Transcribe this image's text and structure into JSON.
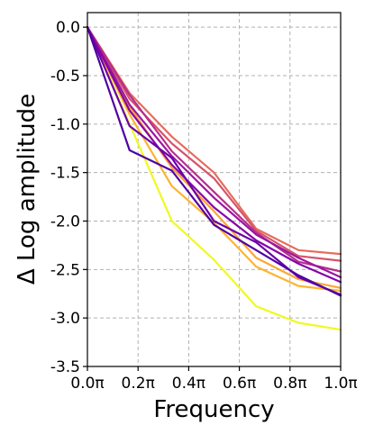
{
  "chart_data": {
    "type": "line",
    "title": "",
    "xlabel": "Frequency",
    "ylabel": "Δ Log amplitude",
    "xlim": [
      0,
      1
    ],
    "ylim": [
      -3.5,
      0.15
    ],
    "grid": true,
    "x_ticks": [
      {
        "value": 0.0,
        "label": "0.0π"
      },
      {
        "value": 0.2,
        "label": "0.2π"
      },
      {
        "value": 0.4,
        "label": "0.4π"
      },
      {
        "value": 0.6,
        "label": "0.6π"
      },
      {
        "value": 0.8,
        "label": "0.8π"
      },
      {
        "value": 1.0,
        "label": "1.0π"
      }
    ],
    "y_ticks": [
      {
        "value": 0.0,
        "label": "0.0"
      },
      {
        "value": -0.5,
        "label": "-0.5"
      },
      {
        "value": -1.0,
        "label": "-1.0"
      },
      {
        "value": -1.5,
        "label": "-1.5"
      },
      {
        "value": -2.0,
        "label": "-2.0"
      },
      {
        "value": -2.5,
        "label": "-2.5"
      },
      {
        "value": -3.0,
        "label": "-3.0"
      },
      {
        "value": -3.5,
        "label": "-3.5"
      }
    ],
    "x": [
      0,
      0.1667,
      0.3333,
      0.5,
      0.6667,
      0.8333,
      1.0
    ],
    "series": [
      {
        "color": "#f0f921",
        "values": [
          0,
          -1.0,
          -2.0,
          -2.4,
          -2.88,
          -3.05,
          -3.12
        ]
      },
      {
        "color": "#fdb42f",
        "values": [
          0,
          -0.9,
          -1.64,
          -2.02,
          -2.47,
          -2.67,
          -2.72
        ]
      },
      {
        "color": "#fca636",
        "values": [
          0,
          -0.82,
          -1.45,
          -1.9,
          -2.38,
          -2.6,
          -2.69
        ]
      },
      {
        "color": "#e66c5c",
        "values": [
          0,
          -0.68,
          -1.13,
          -1.5,
          -2.08,
          -2.3,
          -2.34
        ]
      },
      {
        "color": "#d5546e",
        "values": [
          0,
          -0.74,
          -1.2,
          -1.56,
          -2.1,
          -2.36,
          -2.41
        ]
      },
      {
        "color": "#b52f8c",
        "values": [
          0,
          -0.7,
          -1.28,
          -1.7,
          -2.12,
          -2.42,
          -2.52
        ]
      },
      {
        "color": "#9c179e",
        "values": [
          0,
          -0.8,
          -1.33,
          -1.76,
          -2.14,
          -2.38,
          -2.58
        ]
      },
      {
        "color": "#8405a7",
        "values": [
          0,
          -0.86,
          -1.42,
          -1.86,
          -2.2,
          -2.44,
          -2.63
        ]
      },
      {
        "color": "#6a00a8",
        "values": [
          0,
          -1.02,
          -1.35,
          -2.0,
          -2.22,
          -2.58,
          -2.76
        ]
      },
      {
        "color": "#5002a2",
        "values": [
          0,
          -1.27,
          -1.48,
          -2.04,
          -2.3,
          -2.56,
          -2.77
        ]
      }
    ]
  }
}
